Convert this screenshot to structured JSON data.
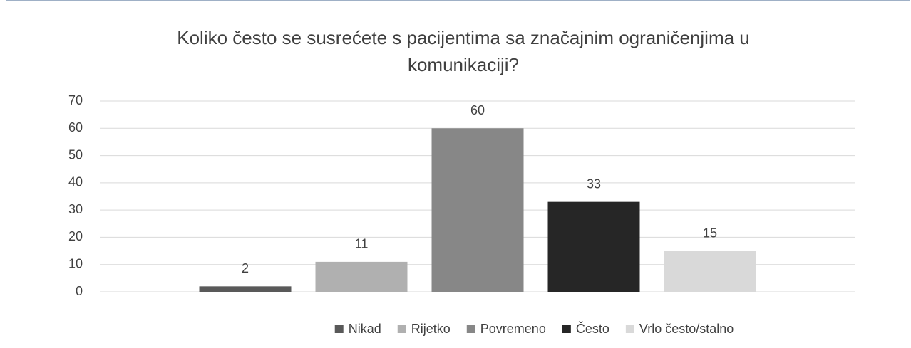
{
  "chart_data": {
    "type": "bar",
    "title": "Koliko često se susrećete s pacijentima sa značajnim ograničenjima u komunikaciji?",
    "categories": [
      null
    ],
    "series": [
      {
        "name": "Nikad",
        "color": "#595959",
        "values": [
          2
        ]
      },
      {
        "name": "Rijetko",
        "color": "#b0b0b0",
        "values": [
          11
        ]
      },
      {
        "name": "Povremeno",
        "color": "#878787",
        "values": [
          60
        ]
      },
      {
        "name": "Često",
        "color": "#262626",
        "values": [
          33
        ]
      },
      {
        "name": "Vrlo često/stalno",
        "color": "#d9d9d9",
        "values": [
          15
        ]
      }
    ],
    "ylim": [
      0,
      70
    ],
    "yticks": [
      0,
      10,
      20,
      30,
      40,
      50,
      60,
      70
    ],
    "grid": true,
    "legend": "bottom"
  }
}
